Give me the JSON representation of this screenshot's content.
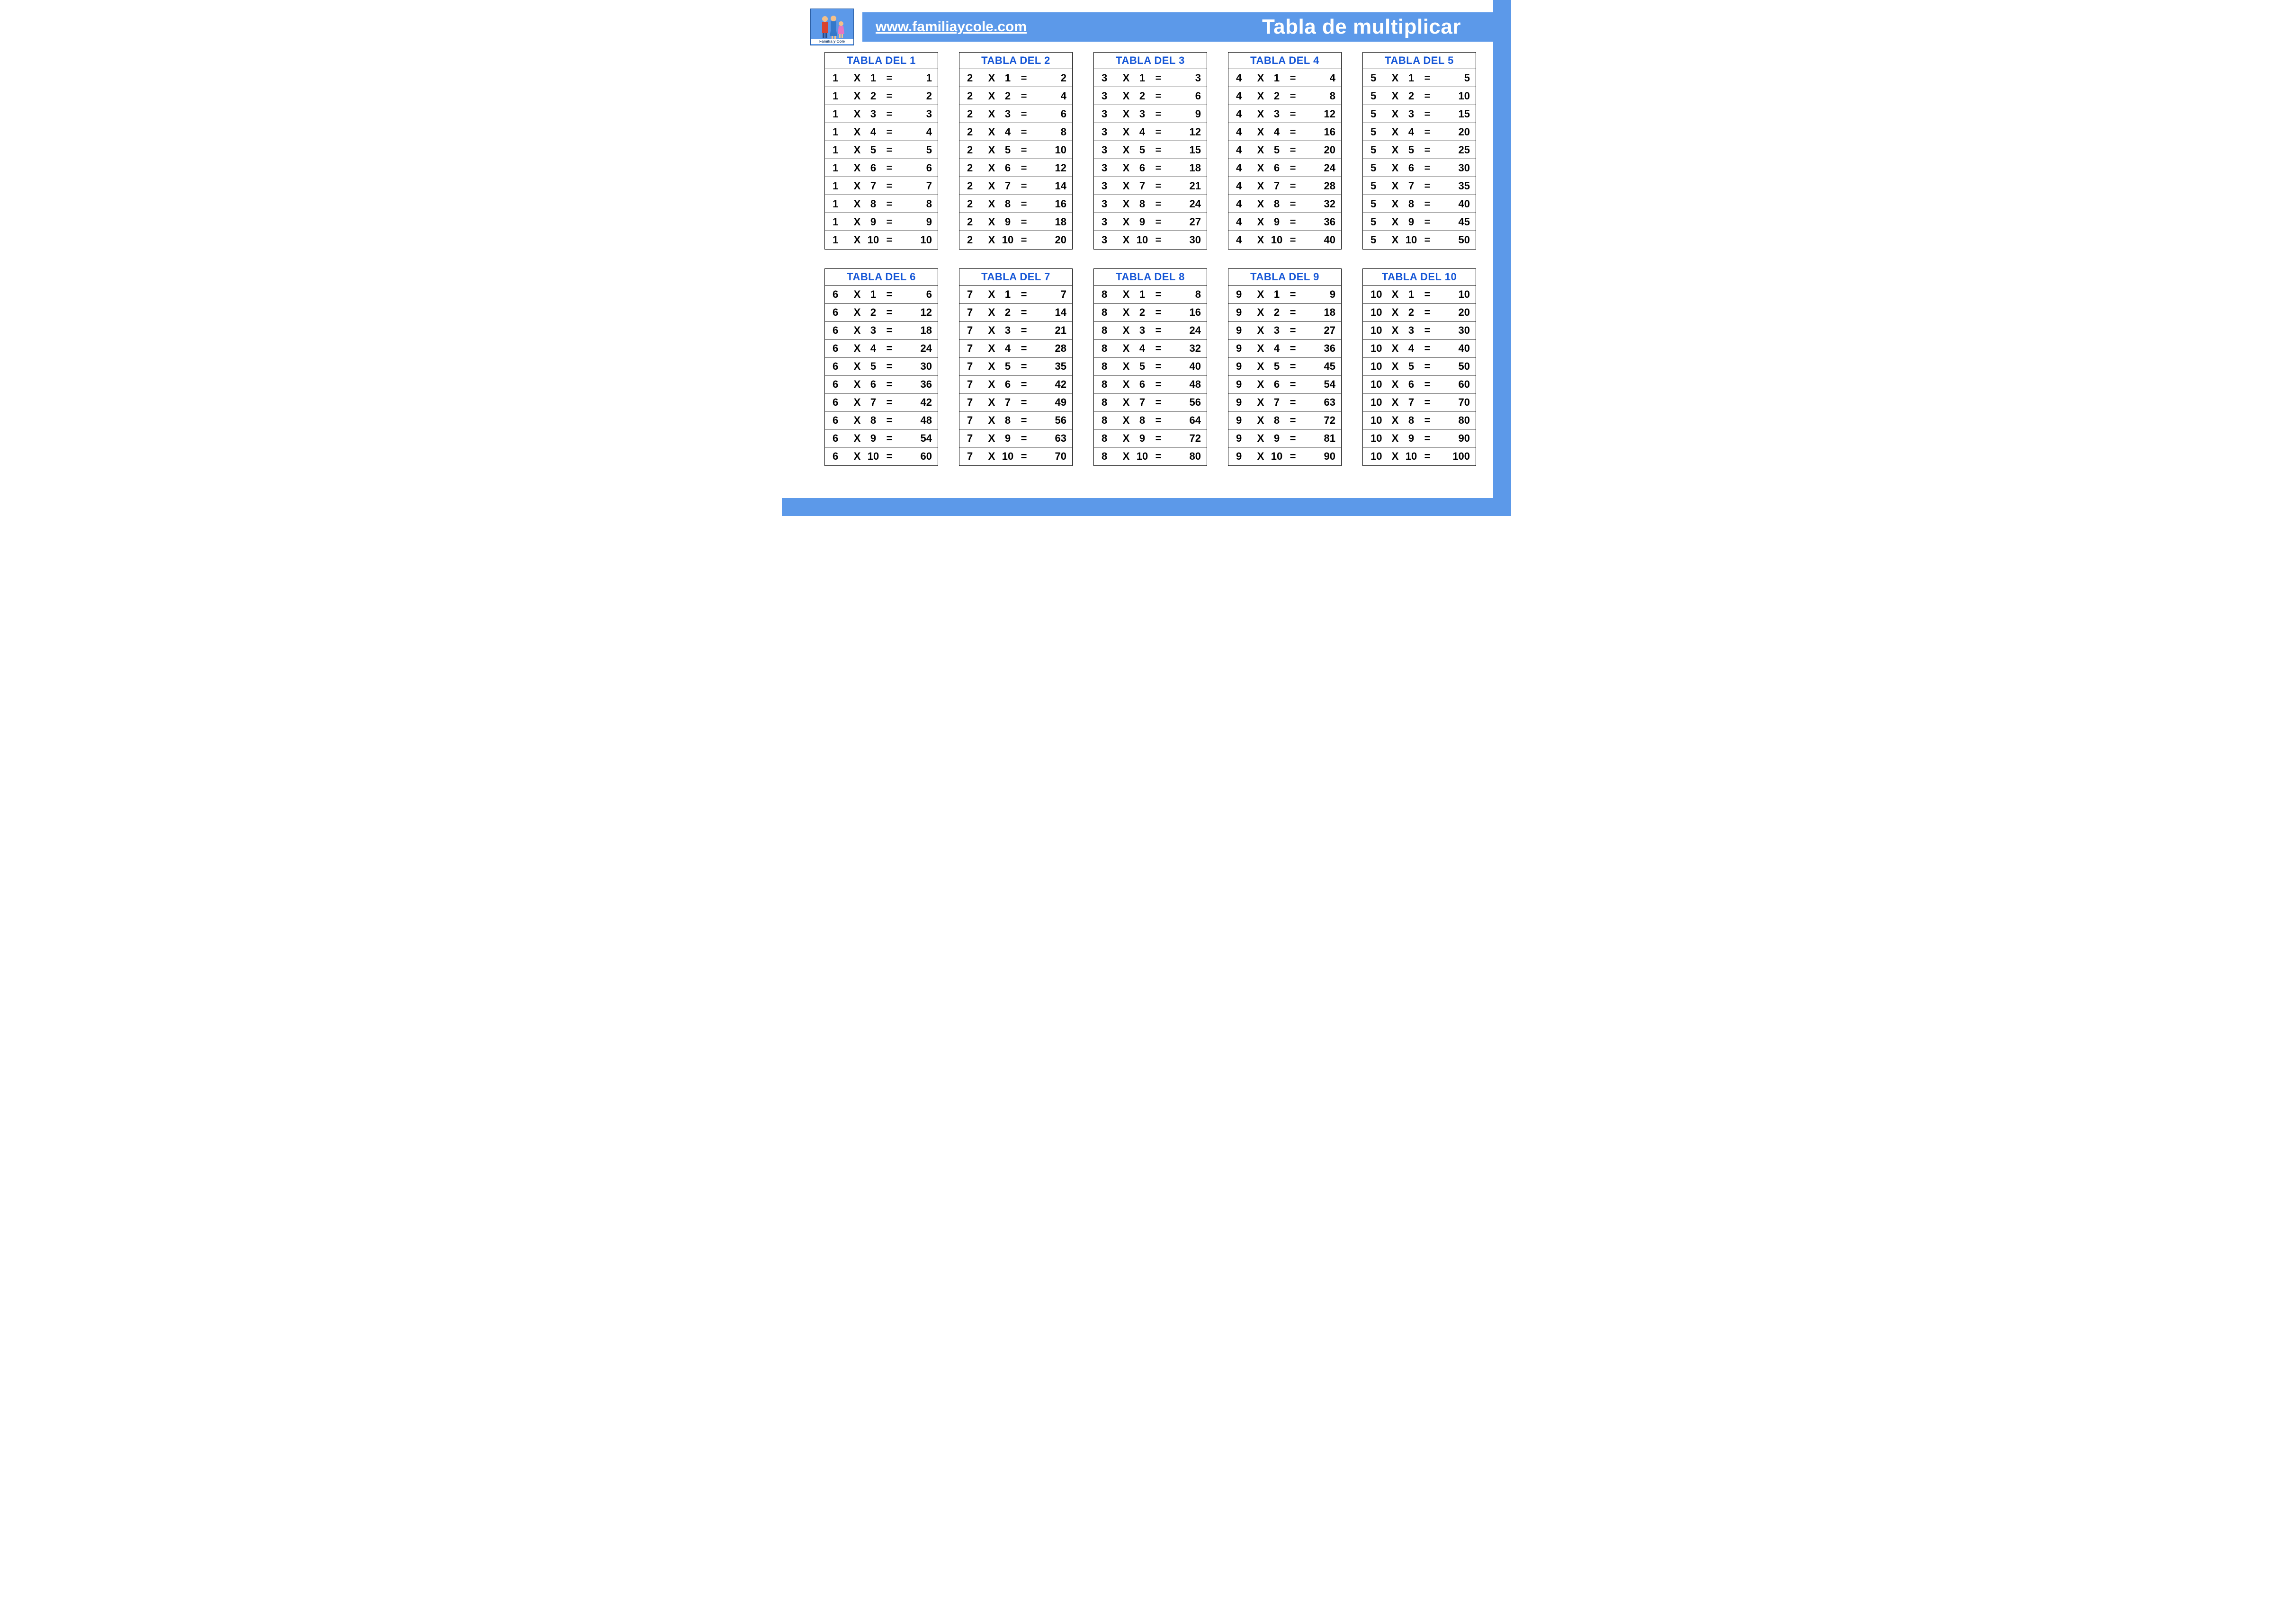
{
  "header": {
    "logo_caption": "Familia y Cole",
    "url": "www.familiaycole.com",
    "title": "Tabla de multiplicar",
    "banner_bg": "#5c99e9",
    "banner_text_color": "#ffffff",
    "border_color": "#5c99e9"
  },
  "style": {
    "table_title_color": "#1556d6",
    "table_border_color": "#000000",
    "cell_text_color": "#000000",
    "page_bg": "#ffffff",
    "operator": "X",
    "equals": "="
  },
  "tables": [
    {
      "n": 1,
      "title": "TABLA DEL 1",
      "rows": [
        [
          1,
          1,
          1
        ],
        [
          1,
          2,
          2
        ],
        [
          1,
          3,
          3
        ],
        [
          1,
          4,
          4
        ],
        [
          1,
          5,
          5
        ],
        [
          1,
          6,
          6
        ],
        [
          1,
          7,
          7
        ],
        [
          1,
          8,
          8
        ],
        [
          1,
          9,
          9
        ],
        [
          1,
          10,
          10
        ]
      ]
    },
    {
      "n": 2,
      "title": "TABLA DEL 2",
      "rows": [
        [
          2,
          1,
          2
        ],
        [
          2,
          2,
          4
        ],
        [
          2,
          3,
          6
        ],
        [
          2,
          4,
          8
        ],
        [
          2,
          5,
          10
        ],
        [
          2,
          6,
          12
        ],
        [
          2,
          7,
          14
        ],
        [
          2,
          8,
          16
        ],
        [
          2,
          9,
          18
        ],
        [
          2,
          10,
          20
        ]
      ]
    },
    {
      "n": 3,
      "title": "TABLA DEL 3",
      "rows": [
        [
          3,
          1,
          3
        ],
        [
          3,
          2,
          6
        ],
        [
          3,
          3,
          9
        ],
        [
          3,
          4,
          12
        ],
        [
          3,
          5,
          15
        ],
        [
          3,
          6,
          18
        ],
        [
          3,
          7,
          21
        ],
        [
          3,
          8,
          24
        ],
        [
          3,
          9,
          27
        ],
        [
          3,
          10,
          30
        ]
      ]
    },
    {
      "n": 4,
      "title": "TABLA DEL 4",
      "rows": [
        [
          4,
          1,
          4
        ],
        [
          4,
          2,
          8
        ],
        [
          4,
          3,
          12
        ],
        [
          4,
          4,
          16
        ],
        [
          4,
          5,
          20
        ],
        [
          4,
          6,
          24
        ],
        [
          4,
          7,
          28
        ],
        [
          4,
          8,
          32
        ],
        [
          4,
          9,
          36
        ],
        [
          4,
          10,
          40
        ]
      ]
    },
    {
      "n": 5,
      "title": "TABLA DEL 5",
      "rows": [
        [
          5,
          1,
          5
        ],
        [
          5,
          2,
          10
        ],
        [
          5,
          3,
          15
        ],
        [
          5,
          4,
          20
        ],
        [
          5,
          5,
          25
        ],
        [
          5,
          6,
          30
        ],
        [
          5,
          7,
          35
        ],
        [
          5,
          8,
          40
        ],
        [
          5,
          9,
          45
        ],
        [
          5,
          10,
          50
        ]
      ]
    },
    {
      "n": 6,
      "title": "TABLA DEL 6",
      "rows": [
        [
          6,
          1,
          6
        ],
        [
          6,
          2,
          12
        ],
        [
          6,
          3,
          18
        ],
        [
          6,
          4,
          24
        ],
        [
          6,
          5,
          30
        ],
        [
          6,
          6,
          36
        ],
        [
          6,
          7,
          42
        ],
        [
          6,
          8,
          48
        ],
        [
          6,
          9,
          54
        ],
        [
          6,
          10,
          60
        ]
      ]
    },
    {
      "n": 7,
      "title": "TABLA DEL 7",
      "rows": [
        [
          7,
          1,
          7
        ],
        [
          7,
          2,
          14
        ],
        [
          7,
          3,
          21
        ],
        [
          7,
          4,
          28
        ],
        [
          7,
          5,
          35
        ],
        [
          7,
          6,
          42
        ],
        [
          7,
          7,
          49
        ],
        [
          7,
          8,
          56
        ],
        [
          7,
          9,
          63
        ],
        [
          7,
          10,
          70
        ]
      ]
    },
    {
      "n": 8,
      "title": "TABLA DEL 8",
      "rows": [
        [
          8,
          1,
          8
        ],
        [
          8,
          2,
          16
        ],
        [
          8,
          3,
          24
        ],
        [
          8,
          4,
          32
        ],
        [
          8,
          5,
          40
        ],
        [
          8,
          6,
          48
        ],
        [
          8,
          7,
          56
        ],
        [
          8,
          8,
          64
        ],
        [
          8,
          9,
          72
        ],
        [
          8,
          10,
          80
        ]
      ]
    },
    {
      "n": 9,
      "title": "TABLA DEL 9",
      "rows": [
        [
          9,
          1,
          9
        ],
        [
          9,
          2,
          18
        ],
        [
          9,
          3,
          27
        ],
        [
          9,
          4,
          36
        ],
        [
          9,
          5,
          45
        ],
        [
          9,
          6,
          54
        ],
        [
          9,
          7,
          63
        ],
        [
          9,
          8,
          72
        ],
        [
          9,
          9,
          81
        ],
        [
          9,
          10,
          90
        ]
      ]
    },
    {
      "n": 10,
      "title": "TABLA DEL 10",
      "rows": [
        [
          10,
          1,
          10
        ],
        [
          10,
          2,
          20
        ],
        [
          10,
          3,
          30
        ],
        [
          10,
          4,
          40
        ],
        [
          10,
          5,
          50
        ],
        [
          10,
          6,
          60
        ],
        [
          10,
          7,
          70
        ],
        [
          10,
          8,
          80
        ],
        [
          10,
          9,
          90
        ],
        [
          10,
          10,
          100
        ]
      ]
    }
  ]
}
